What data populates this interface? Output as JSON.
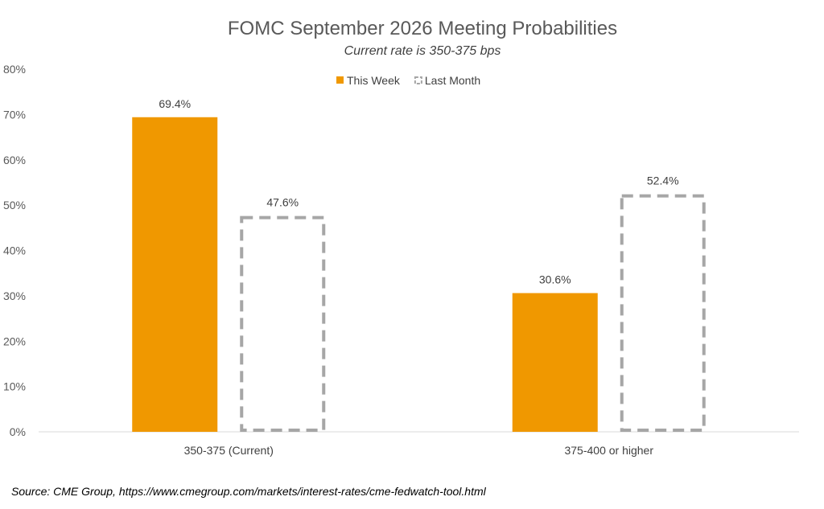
{
  "chart_data": {
    "type": "bar",
    "title": "FOMC September 2026 Meeting Probabilities",
    "subtitle": "Current rate is 350-375 bps",
    "categories": [
      "350-375 (Current)",
      "375-400 or higher"
    ],
    "series": [
      {
        "name": "This Week",
        "values": [
          69.4,
          30.6
        ],
        "labels": [
          "69.4%",
          "30.6%"
        ],
        "style": "solid",
        "color": "#F09800"
      },
      {
        "name": "Last Month",
        "values": [
          47.6,
          52.4
        ],
        "labels": [
          "47.6%",
          "52.4%"
        ],
        "style": "dashed-outline",
        "color": "#A6A6A6"
      }
    ],
    "ylim": [
      0,
      80
    ],
    "yticks": [
      0,
      10,
      20,
      30,
      40,
      50,
      60,
      70,
      80
    ],
    "ytick_labels": [
      "0%",
      "10%",
      "20%",
      "30%",
      "40%",
      "50%",
      "60%",
      "70%",
      "80%"
    ],
    "legend_position": "top-center",
    "grid": false
  },
  "source": "Source: CME Group, https://www.cmegroup.com/markets/interest-rates/cme-fedwatch-tool.html"
}
